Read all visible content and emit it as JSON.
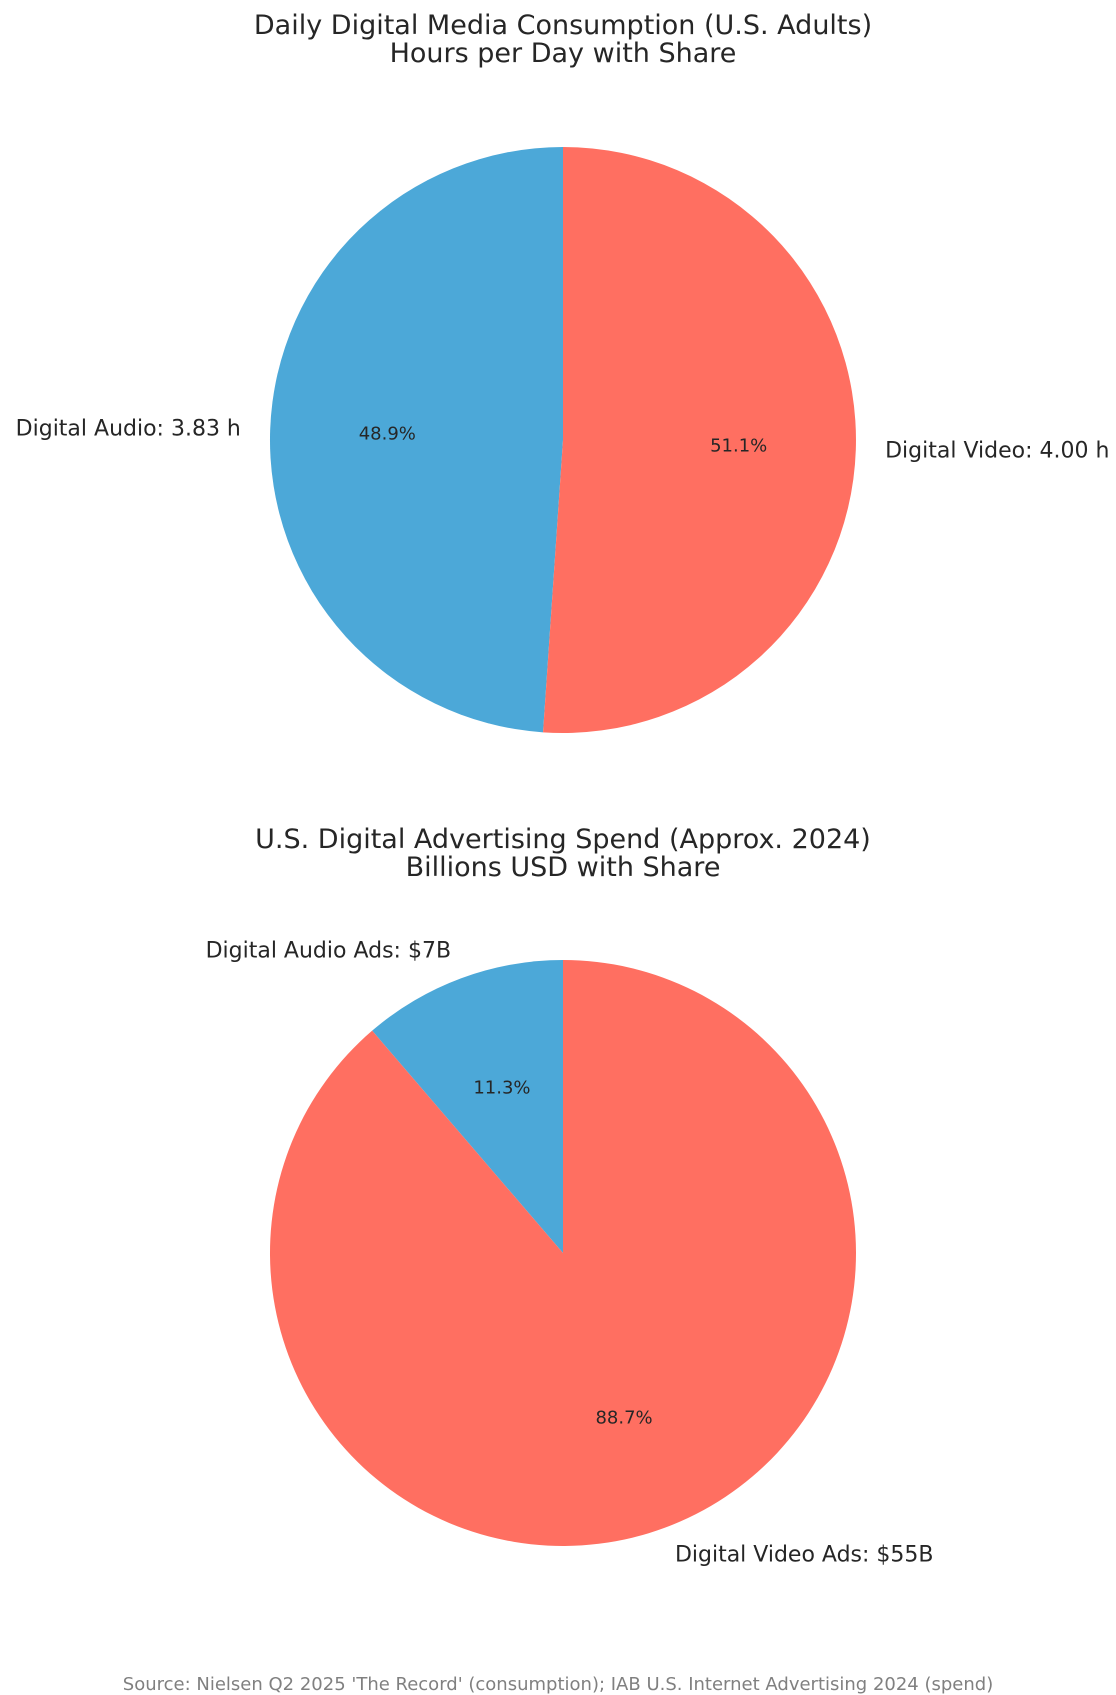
{
  "source": "Source: Nielsen Q2 2025 'The Record' (consumption); IAB U.S. Internet Advertising 2024 (spend)",
  "chart_data": [
    {
      "type": "pie",
      "title": [
        "Daily Digital Media Consumption (U.S. Adults)",
        "Hours per Day with Share"
      ],
      "labels": [
        "Digital Audio: 3.83 h",
        "Digital Video: 4.00 h"
      ],
      "values": [
        3.83,
        4.0
      ],
      "percent_labels": [
        "48.9%",
        "51.1%"
      ],
      "colors": [
        "#4ca8d8",
        "#ff6f61"
      ],
      "start_angle_deg": 90,
      "direction": "counterclockwise"
    },
    {
      "type": "pie",
      "title": [
        "U.S. Digital Advertising Spend (Approx. 2024)",
        "Billions USD with Share"
      ],
      "labels": [
        "Digital Audio Ads: $7B",
        "Digital Video Ads: $55B"
      ],
      "values": [
        7,
        55
      ],
      "percent_labels": [
        "11.3%",
        "88.7%"
      ],
      "colors": [
        "#4ca8d8",
        "#ff6f61"
      ],
      "start_angle_deg": 90,
      "direction": "counterclockwise"
    }
  ]
}
